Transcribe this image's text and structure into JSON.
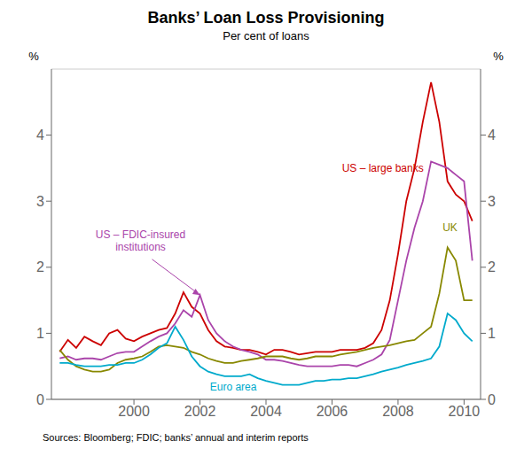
{
  "chart_data": {
    "type": "line",
    "title": "Banks’ Loan Loss Provisioning",
    "subtitle": "Per cent of loans",
    "source": "Sources: Bloomberg; FDIC; banks’ annual and interim reports",
    "ylabel": "%",
    "y2label": "%",
    "grid": true,
    "x": [
      1997.75,
      1998.0,
      1998.25,
      1998.5,
      1998.75,
      1999.0,
      1999.25,
      1999.5,
      1999.75,
      2000.0,
      2000.25,
      2000.5,
      2000.75,
      2001.0,
      2001.25,
      2001.5,
      2001.75,
      2002.0,
      2002.25,
      2002.5,
      2002.75,
      2003.0,
      2003.25,
      2003.5,
      2003.75,
      2004.0,
      2004.25,
      2004.5,
      2004.75,
      2005.0,
      2005.25,
      2005.5,
      2005.75,
      2006.0,
      2006.25,
      2006.5,
      2006.75,
      2007.0,
      2007.25,
      2007.5,
      2007.75,
      2008.0,
      2008.25,
      2008.5,
      2008.75,
      2009.0,
      2009.25,
      2009.5,
      2009.75,
      2010.0,
      2010.25
    ],
    "series": [
      {
        "name": "US – large banks",
        "color": "#cc0000",
        "values": [
          0.72,
          0.9,
          0.78,
          0.95,
          0.88,
          0.82,
          1.0,
          1.05,
          0.92,
          0.88,
          0.95,
          1.0,
          1.05,
          1.08,
          1.3,
          1.62,
          1.4,
          1.3,
          1.05,
          0.88,
          0.8,
          0.78,
          0.75,
          0.75,
          0.72,
          0.68,
          0.75,
          0.75,
          0.72,
          0.68,
          0.7,
          0.72,
          0.72,
          0.72,
          0.75,
          0.75,
          0.75,
          0.78,
          0.85,
          1.05,
          1.5,
          2.2,
          3.0,
          3.5,
          4.2,
          4.8,
          4.2,
          3.3,
          3.1,
          3.0,
          2.7
        ]
      },
      {
        "name": "US – FDIC-insured\ninstitutions",
        "color": "#aa44aa",
        "values": [
          0.62,
          0.65,
          0.6,
          0.62,
          0.62,
          0.6,
          0.65,
          0.7,
          0.72,
          0.72,
          0.8,
          0.88,
          0.95,
          1.0,
          1.15,
          1.35,
          1.25,
          1.58,
          1.2,
          1.0,
          0.88,
          0.8,
          0.75,
          0.72,
          0.68,
          0.6,
          0.6,
          0.58,
          0.55,
          0.52,
          0.5,
          0.5,
          0.5,
          0.5,
          0.52,
          0.52,
          0.5,
          0.55,
          0.6,
          0.68,
          0.9,
          1.5,
          2.1,
          2.6,
          3.0,
          3.6,
          3.55,
          3.5,
          3.4,
          3.3,
          2.1
        ]
      },
      {
        "name": "UK",
        "color": "#888800",
        "values": [
          0.75,
          0.6,
          0.5,
          0.45,
          0.42,
          0.42,
          0.45,
          0.55,
          0.6,
          0.62,
          0.65,
          0.72,
          0.8,
          0.82,
          0.8,
          0.78,
          0.72,
          0.68,
          0.62,
          0.58,
          0.55,
          0.55,
          0.58,
          0.6,
          0.62,
          0.65,
          0.65,
          0.65,
          0.62,
          0.6,
          0.62,
          0.65,
          0.65,
          0.65,
          0.68,
          0.7,
          0.72,
          0.75,
          0.78,
          0.8,
          0.82,
          0.85,
          0.88,
          0.9,
          1.0,
          1.1,
          1.6,
          2.3,
          2.1,
          1.5,
          1.5
        ]
      },
      {
        "name": "Euro area",
        "color": "#00aacc",
        "values": [
          0.55,
          0.55,
          0.52,
          0.5,
          0.5,
          0.5,
          0.52,
          0.52,
          0.55,
          0.55,
          0.6,
          0.68,
          0.78,
          0.85,
          1.1,
          0.9,
          0.65,
          0.5,
          0.42,
          0.38,
          0.35,
          0.35,
          0.35,
          0.38,
          0.32,
          0.28,
          0.25,
          0.22,
          0.22,
          0.22,
          0.25,
          0.28,
          0.28,
          0.3,
          0.3,
          0.32,
          0.32,
          0.35,
          0.38,
          0.42,
          0.45,
          0.48,
          0.52,
          0.55,
          0.58,
          0.62,
          0.8,
          1.3,
          1.2,
          1.0,
          0.88
        ]
      }
    ],
    "xlim": [
      1997.5,
      2010.5
    ],
    "xticks": [
      2000,
      2002,
      2004,
      2006,
      2008,
      2010
    ],
    "ylim": [
      0,
      5
    ],
    "yticks": [
      0,
      1,
      2,
      3,
      4
    ],
    "y2lim": [
      0,
      5
    ],
    "y2ticks": [
      0,
      1,
      2,
      3,
      4
    ]
  }
}
